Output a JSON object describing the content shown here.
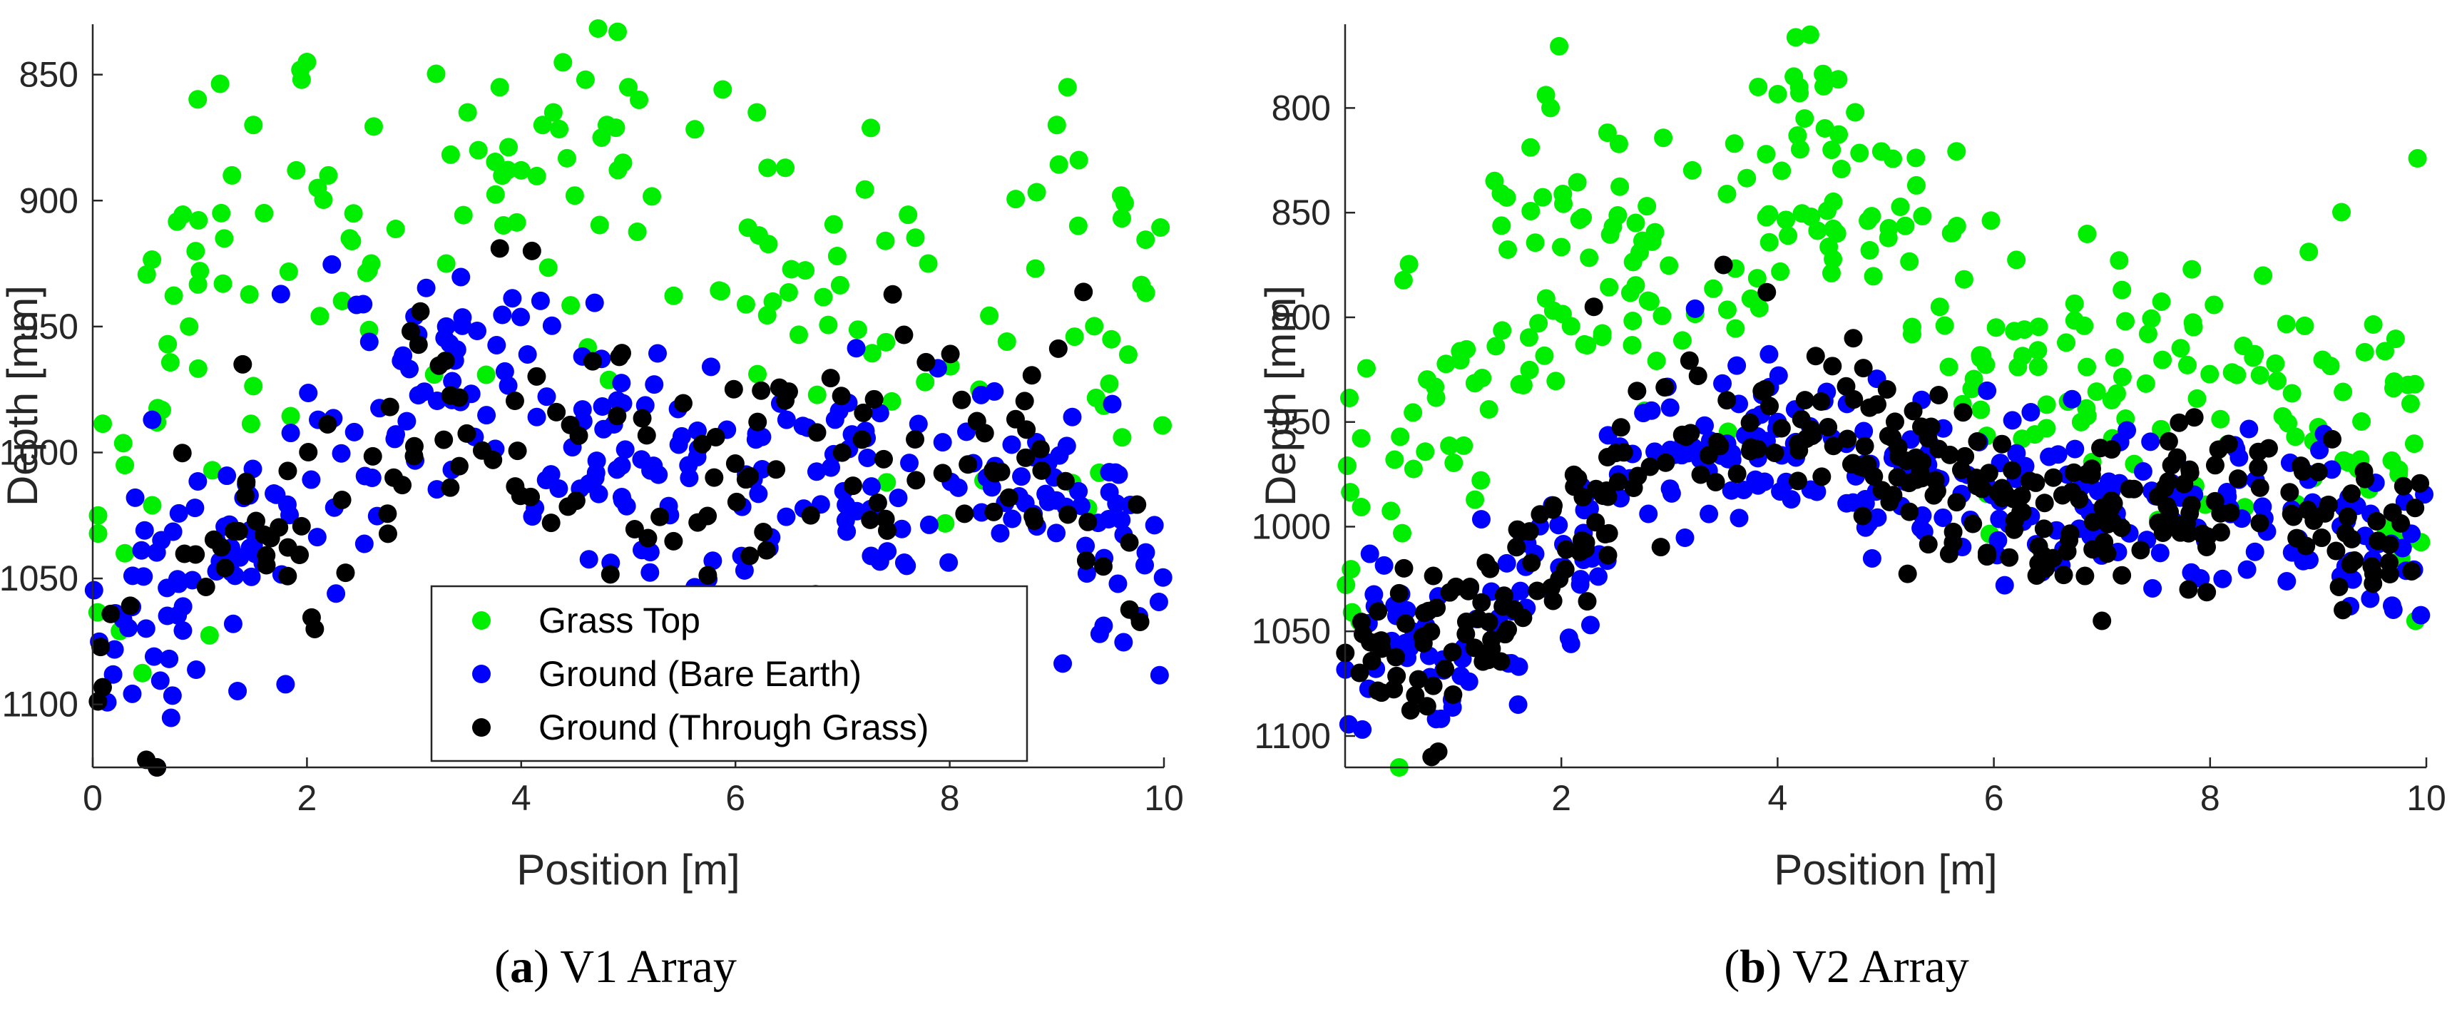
{
  "colors": {
    "grass_top": "#00ee00",
    "bare_earth": "#0000ff",
    "through_grass": "#000000"
  },
  "chart_data": [
    {
      "id": "a",
      "type": "scatter",
      "caption_letter": "a",
      "caption_text": "V1 Array",
      "xlabel": "Position [m]",
      "ylabel": "Depth [mm]",
      "xlim": [
        0,
        10
      ],
      "ylim": [
        1125,
        830
      ],
      "xticks": [
        0,
        2,
        4,
        6,
        8,
        10
      ],
      "yticks": [
        850,
        900,
        950,
        1000,
        1050,
        1100
      ],
      "legend": {
        "position": "bottom-left",
        "entries": [
          "Grass Top",
          "Ground (Bare Earth)",
          "Ground (Through Grass)"
        ]
      },
      "series": [
        {
          "name": "Grass Top",
          "color": "#00ee00",
          "x_range": [
            0,
            10
          ],
          "center": [
            [
              0,
              1030
            ],
            [
              1,
              945
            ],
            [
              2,
              900
            ],
            [
              3,
              925
            ],
            [
              4,
              900
            ],
            [
              5,
              900
            ],
            [
              6,
              935
            ],
            [
              7,
              950
            ],
            [
              8,
              960
            ],
            [
              9,
              940
            ],
            [
              10,
              975
            ]
          ],
          "spread": 40,
          "n": 130,
          "points": [
            [
              0.3,
              1005
            ],
            [
              0.6,
              988
            ],
            [
              0.7,
              957
            ],
            [
              0.9,
              950
            ],
            [
              1.0,
              928
            ],
            [
              1.2,
              905
            ],
            [
              1.3,
              890
            ],
            [
              1.5,
              870
            ],
            [
              1.6,
              905
            ],
            [
              1.9,
              888
            ],
            [
              1.95,
              852
            ],
            [
              2.0,
              845
            ],
            [
              2.1,
              895
            ],
            [
              2.2,
              890
            ],
            [
              2.4,
              915
            ],
            [
              2.6,
              925
            ],
            [
              3.3,
              925
            ],
            [
              3.5,
              865
            ],
            [
              3.6,
              880
            ],
            [
              3.8,
              855
            ],
            [
              4.0,
              888
            ],
            [
              4.2,
              870
            ],
            [
              4.3,
              865
            ],
            [
              4.5,
              898
            ],
            [
              4.6,
              852
            ],
            [
              4.75,
              875
            ],
            [
              4.8,
              870
            ],
            [
              4.9,
              833
            ],
            [
              4.95,
              885
            ],
            [
              5.0,
              855
            ],
            [
              5.1,
              860
            ],
            [
              6.2,
              865
            ],
            [
              6.3,
              887
            ],
            [
              6.95,
              922
            ],
            [
              7.4,
              916
            ],
            [
              7.8,
              925
            ],
            [
              8.8,
              927
            ],
            [
              9.0,
              870
            ],
            [
              9.1,
              855
            ],
            [
              9.2,
              910
            ],
            [
              9.6,
              898
            ],
            [
              0.05,
              1025
            ],
            [
              0.3,
              1040
            ]
          ]
        },
        {
          "name": "Ground (Bare Earth)",
          "color": "#0000ff",
          "x_range": [
            0,
            10
          ],
          "center": [
            [
              0,
              1060
            ],
            [
              1,
              1050
            ],
            [
              2,
              1010
            ],
            [
              3,
              975
            ],
            [
              4,
              975
            ],
            [
              5,
              1005
            ],
            [
              6,
              1015
            ],
            [
              7,
              1020
            ],
            [
              8,
              1010
            ],
            [
              9,
              1010
            ],
            [
              10,
              1030
            ]
          ],
          "spread": 25,
          "n": 300,
          "points": [
            [
              0.6,
              1125
            ],
            [
              1.8,
              1092
            ],
            [
              9.4,
              1072
            ],
            [
              3.3,
              950
            ]
          ]
        },
        {
          "name": "Ground (Through Grass)",
          "color": "#000000",
          "x_range": [
            0,
            10
          ],
          "center": [
            [
              0,
              1070
            ],
            [
              1,
              1045
            ],
            [
              2,
              1030
            ],
            [
              3,
              990
            ],
            [
              4,
              985
            ],
            [
              5,
              1000
            ],
            [
              6,
              1005
            ],
            [
              7,
              1000
            ],
            [
              8,
              995
            ],
            [
              9,
              1000
            ],
            [
              10,
              1050
            ]
          ],
          "spread": 25,
          "n": 150,
          "points": [
            [
              0.5,
              1122
            ],
            [
              0.6,
              1125
            ],
            [
              3.8,
              919
            ],
            [
              4.1,
              920
            ],
            [
              1.4,
              965
            ]
          ]
        }
      ]
    },
    {
      "id": "b",
      "type": "scatter",
      "caption_letter": "b",
      "caption_text": "V2 Array",
      "xlabel": "Position [m]",
      "ylabel": "Depth [mm]",
      "xlim": [
        0,
        10
      ],
      "ylim": [
        1115,
        760
      ],
      "xticks": [
        2,
        4,
        6,
        8,
        10
      ],
      "yticks": [
        800,
        850,
        900,
        950,
        1000,
        1050,
        1100
      ],
      "legend": null,
      "series": [
        {
          "name": "Grass Top",
          "color": "#00ee00",
          "x_range": [
            0,
            10
          ],
          "center": [
            [
              0,
              990
            ],
            [
              1,
              930
            ],
            [
              2,
              870
            ],
            [
              3,
              880
            ],
            [
              4,
              845
            ],
            [
              5,
              865
            ],
            [
              6,
              915
            ],
            [
              7,
              935
            ],
            [
              8,
              935
            ],
            [
              9,
              945
            ],
            [
              10,
              960
            ]
          ],
          "spread": 38,
          "n": 280,
          "points": [
            [
              1.9,
              800
            ],
            [
              4.15,
              785
            ],
            [
              4.2,
              790
            ],
            [
              4.3,
              765
            ],
            [
              4.25,
              805
            ],
            [
              4.5,
              820
            ],
            [
              3.6,
              817
            ],
            [
              5.5,
              895
            ],
            [
              0.5,
              1115
            ],
            [
              9.9,
              1045
            ]
          ]
        },
        {
          "name": "Ground (Bare Earth)",
          "color": "#0000ff",
          "x_range": [
            0,
            10
          ],
          "center": [
            [
              0,
              1050
            ],
            [
              1,
              1050
            ],
            [
              2,
              1020
            ],
            [
              3,
              965
            ],
            [
              4,
              960
            ],
            [
              5,
              975
            ],
            [
              6,
              985
            ],
            [
              7,
              995
            ],
            [
              8,
              990
            ],
            [
              9,
              995
            ],
            [
              10,
              1010
            ]
          ],
          "spread": 20,
          "n": 320,
          "points": [
            [
              1.6,
              1085
            ],
            [
              4.0,
              950
            ],
            [
              6.1,
              1028
            ]
          ]
        },
        {
          "name": "Ground (Through Grass)",
          "color": "#000000",
          "x_range": [
            0,
            10
          ],
          "center": [
            [
              0,
              1060
            ],
            [
              1,
              1055
            ],
            [
              2,
              1010
            ],
            [
              3,
              955
            ],
            [
              4,
              950
            ],
            [
              5,
              965
            ],
            [
              6,
              985
            ],
            [
              7,
              1000
            ],
            [
              8,
              990
            ],
            [
              9,
              1000
            ],
            [
              10,
              1010
            ]
          ],
          "spread": 18,
          "n": 330,
          "points": [
            [
              0.8,
              1110
            ],
            [
              3.5,
              875
            ],
            [
              3.9,
              888
            ],
            [
              4.7,
              910
            ],
            [
              7.0,
              1045
            ],
            [
              7.8,
              1030
            ],
            [
              2.3,
              895
            ]
          ]
        }
      ]
    }
  ]
}
